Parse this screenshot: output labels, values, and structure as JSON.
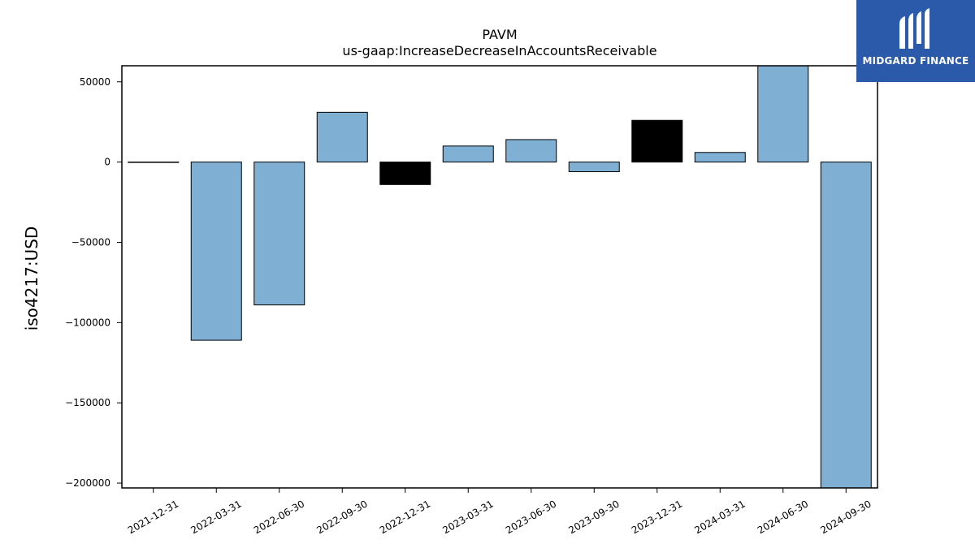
{
  "chart_data": {
    "type": "bar",
    "title": "PAVM",
    "subtitle": "us-gaap:IncreaseDecreaseInAccountsReceivable",
    "xlabel": "",
    "ylabel": "iso4217:USD",
    "categories": [
      "2021-12-31",
      "2022-03-31",
      "2022-06-30",
      "2022-09-30",
      "2022-12-31",
      "2023-03-31",
      "2023-06-30",
      "2023-09-30",
      "2023-12-31",
      "2024-03-31",
      "2024-06-30",
      "2024-09-30"
    ],
    "values": [
      0,
      -111000,
      -89000,
      31000,
      -14000,
      10000,
      14000,
      -6000,
      26000,
      6000,
      60000,
      -203000
    ],
    "bar_colors": [
      "#7fafd3",
      "#7fafd3",
      "#7fafd3",
      "#7fafd3",
      "#000000",
      "#7fafd3",
      "#7fafd3",
      "#7fafd3",
      "#000000",
      "#7fafd3",
      "#7fafd3",
      "#7fafd3"
    ],
    "yticks": [
      50000,
      0,
      -50000,
      -100000,
      -150000,
      -200000
    ],
    "ytick_labels": [
      "50000",
      "0",
      "−50000",
      "−100000",
      "−150000",
      "−200000"
    ],
    "ylim": [
      -203000,
      60000
    ],
    "grid": false,
    "legend": "none"
  },
  "logo": {
    "text": "MIDGARD FINANCE",
    "background": "#2b5aab"
  }
}
